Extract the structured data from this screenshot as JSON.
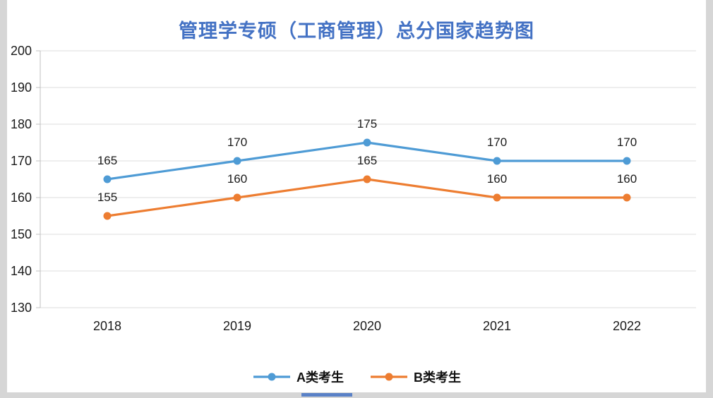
{
  "page": {
    "background": "#d6d6d6",
    "card_background": "#ffffff"
  },
  "chart_data": {
    "type": "line",
    "title": "管理学专硕（工商管理）总分国家趋势图",
    "categories": [
      "2018",
      "2019",
      "2020",
      "2021",
      "2022"
    ],
    "series": [
      {
        "name": "A类考生",
        "color": "#4e9bd5",
        "values": [
          165,
          170,
          175,
          170,
          170
        ]
      },
      {
        "name": "B类考生",
        "color": "#ed7d31",
        "values": [
          155,
          160,
          165,
          160,
          160
        ]
      }
    ],
    "ylim": [
      130,
      200
    ],
    "yticks": [
      200,
      190,
      180,
      170,
      160,
      150,
      140,
      130
    ],
    "grid": true,
    "data_labels": true,
    "legend_position": "bottom",
    "colors": {
      "title": "#4472c4",
      "gridline": "#dcdcdc",
      "axis_line": "#c0c0c0",
      "axis_text": "#1a1a1a",
      "data_label_text": "#1a1a1a"
    }
  }
}
